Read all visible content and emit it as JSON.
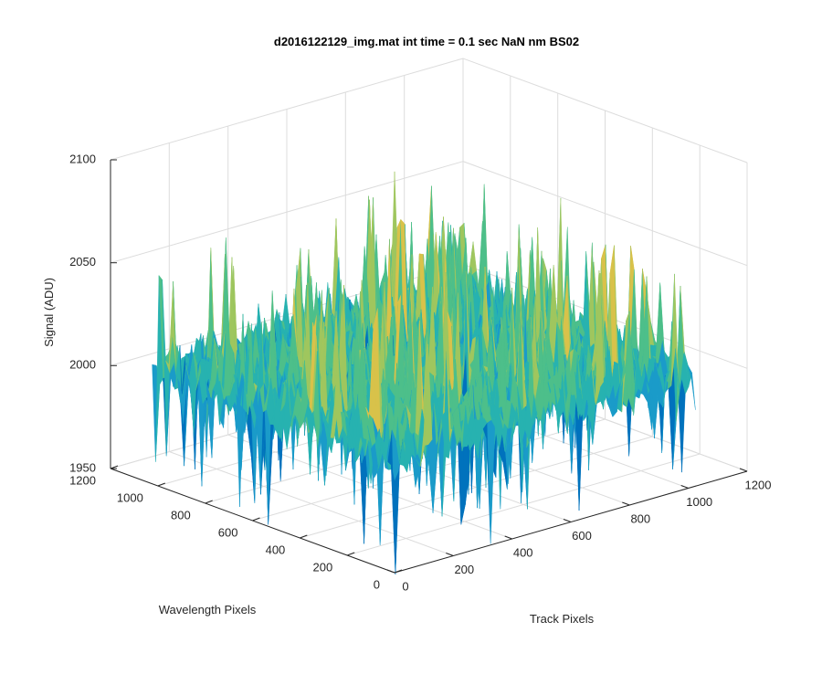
{
  "chart_data": {
    "type": "surface",
    "title": "d2016122129_img.mat int time = 0.1 sec  NaN nm BS02",
    "xlabel": "Track Pixels",
    "ylabel": "Wavelength Pixels",
    "zlabel": "Signal (ADU)",
    "xlim": [
      0,
      1200
    ],
    "ylim": [
      0,
      1200
    ],
    "zlim": [
      1950,
      2100
    ],
    "x_ticks": [
      "0",
      "200",
      "400",
      "600",
      "800",
      "1000",
      "1200"
    ],
    "y_ticks": [
      "0",
      "200",
      "400",
      "600",
      "800",
      "1000",
      "1200"
    ],
    "z_ticks": [
      "1950",
      "2000",
      "2050",
      "2100"
    ],
    "surface": {
      "x_extent": [
        0,
        1024
      ],
      "y_extent": [
        0,
        1024
      ],
      "mean_level": 2005,
      "typical_range": [
        1985,
        2035
      ],
      "peak_max": 2070,
      "trough_min": 1948
    },
    "grid": true,
    "colormap": [
      "#0072bd",
      "#1a9bc9",
      "#27b2b0",
      "#4dbf8a",
      "#9fc65e",
      "#d8c24a"
    ]
  }
}
